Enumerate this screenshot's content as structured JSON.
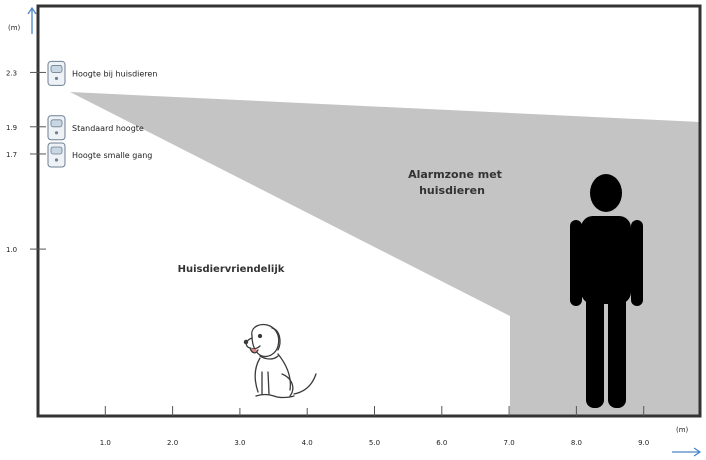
{
  "axes": {
    "y_unit": "(m)",
    "x_unit": "(m)",
    "y_ticks": [
      {
        "value": 2.3,
        "label": "2.3"
      },
      {
        "value": 1.9,
        "label": "1.9"
      },
      {
        "value": 1.7,
        "label": "1.7"
      },
      {
        "value": 1.0,
        "label": "1.0"
      }
    ],
    "x_ticks": [
      {
        "value": 1.0,
        "label": "1.0"
      },
      {
        "value": 2.0,
        "label": "2.0"
      },
      {
        "value": 3.0,
        "label": "3.0"
      },
      {
        "value": 4.0,
        "label": "4.0"
      },
      {
        "value": 5.0,
        "label": "5.0"
      },
      {
        "value": 6.0,
        "label": "6.0"
      },
      {
        "value": 7.0,
        "label": "7.0"
      },
      {
        "value": 8.0,
        "label": "8.0"
      },
      {
        "value": 9.0,
        "label": "9.0"
      }
    ]
  },
  "mounting_heights": [
    {
      "label": "Hoogte bij huisdieren",
      "height": 2.3
    },
    {
      "label": "Standaard hoogte",
      "height": 1.9
    },
    {
      "label": "Hoogte smalle gang",
      "height": 1.7
    }
  ],
  "zones": {
    "alarm_line1": "Alarmzone met",
    "alarm_line2": "huisdieren",
    "pet_friendly": "Huisdiervriendelijk"
  },
  "colors": {
    "alarm_zone": "#c4c4c4",
    "frame": "#333333",
    "axis_arrow": "#4a86c8",
    "person": "#000000"
  }
}
